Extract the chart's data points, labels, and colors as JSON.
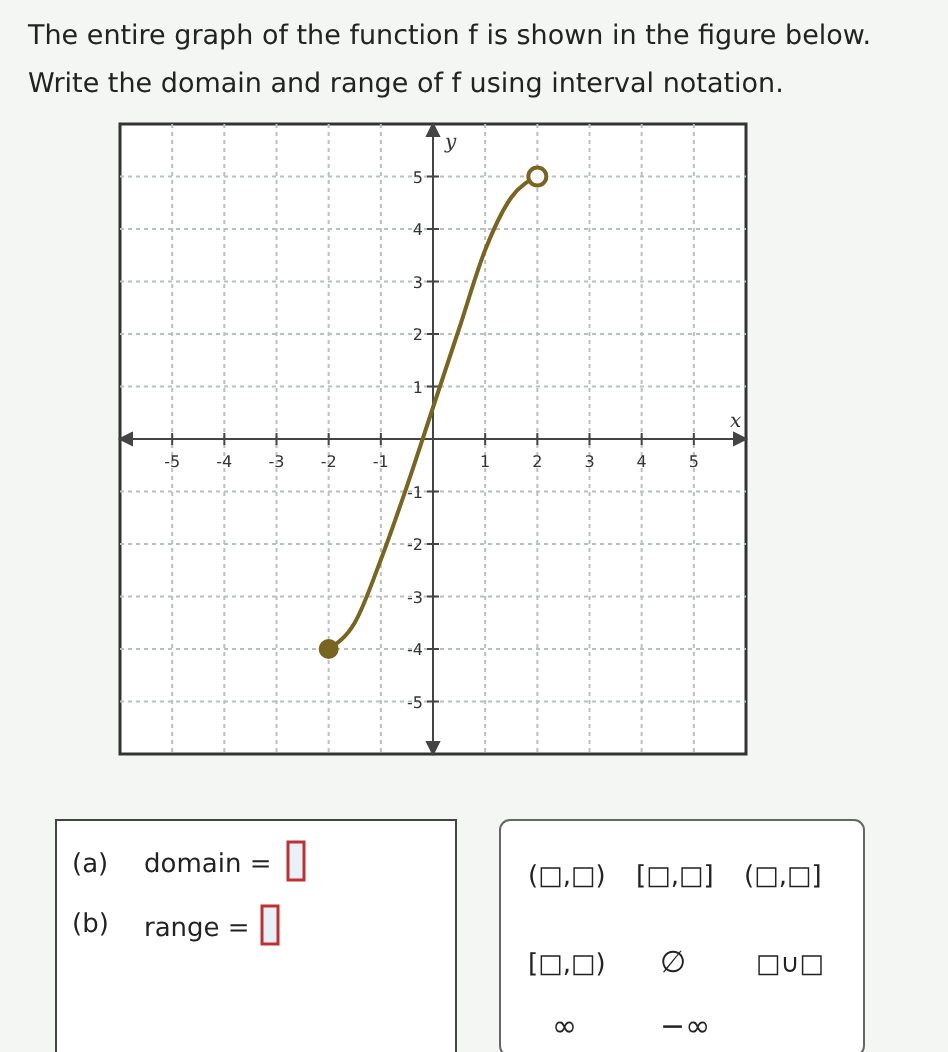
{
  "chart_data": {
    "type": "line",
    "title": "The entire graph of the function f is shown in the figure below.",
    "subtitle": "Write the domain and range of f using interval notation.",
    "xlabel": "x",
    "ylabel": "y",
    "x": [
      -2,
      -1.5,
      -1,
      -0.5,
      0,
      0.5,
      1,
      1.5,
      2
    ],
    "series": [
      {
        "color": "#7a6520",
        "values": [
          -4,
          -3.5,
          -2.3,
          -0.9,
          0.6,
          2.1,
          3.6,
          4.6,
          5
        ]
      }
    ],
    "xlim": [
      -6,
      6
    ],
    "ylim": [
      -6,
      6
    ],
    "xticks": [
      -5,
      -4,
      -3,
      -2,
      -1,
      1,
      2,
      3,
      4,
      5
    ],
    "yticks": [
      -5,
      -4,
      -3,
      -2,
      -1,
      1,
      2,
      3,
      4,
      5
    ],
    "grid": true,
    "line_style": "solid",
    "annotations": [
      "(a)",
      "domain =",
      "(b)",
      "range =",
      "(□,□)",
      "[□,□]",
      "(□,□]",
      "[□,□)",
      "∅",
      "□∪□",
      "∞",
      "−∞"
    ]
  }
}
